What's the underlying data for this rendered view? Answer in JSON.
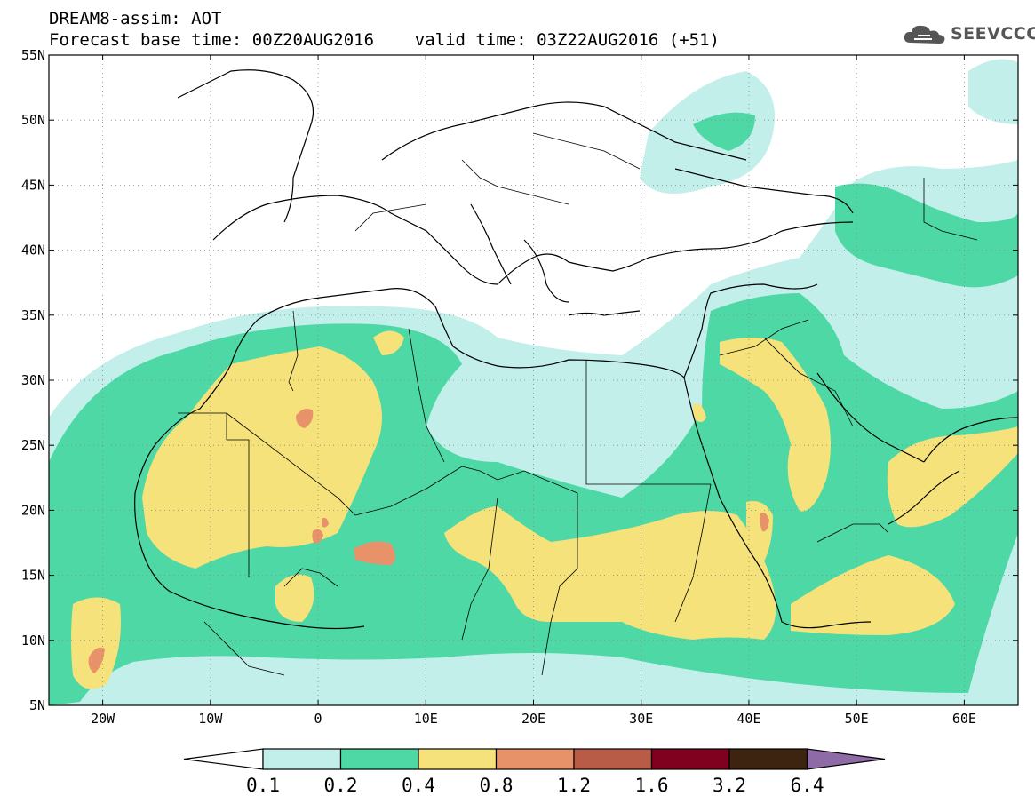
{
  "header": {
    "title_line1": "DREAM8-assim: AOT",
    "title_line2": "Forecast base time: 00Z20AUG2016    valid time: 03Z22AUG2016 (+51)",
    "logo_text": "SEEVCCC"
  },
  "map": {
    "extent": {
      "lon_min": -25,
      "lon_max": 65,
      "lat_min": 5,
      "lat_max": 55
    },
    "lat_ticks": [
      "55N",
      "50N",
      "45N",
      "40N",
      "35N",
      "30N",
      "25N",
      "20N",
      "15N",
      "10N",
      "5N"
    ],
    "lon_ticks": [
      "20W",
      "10W",
      "0",
      "10E",
      "20E",
      "30E",
      "40E",
      "50E",
      "60E"
    ],
    "gridlines": "dotted"
  },
  "colorbar": {
    "labels": [
      "0.1",
      "0.2",
      "0.4",
      "0.8",
      "1.2",
      "1.6",
      "3.2",
      "6.4"
    ],
    "colors": [
      "#ffffff",
      "#c2efea",
      "#4ed8a6",
      "#f5e27a",
      "#e8926a",
      "#b85c48",
      "#800020",
      "#3c2410",
      "#8e6aa6"
    ]
  }
}
